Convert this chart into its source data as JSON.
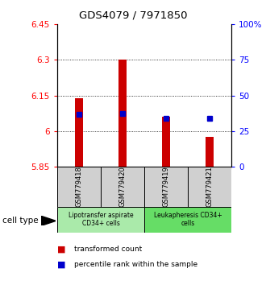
{
  "title": "GDS4079 / 7971850",
  "samples": [
    "GSM779418",
    "GSM779420",
    "GSM779419",
    "GSM779421"
  ],
  "red_bar_bottom": 5.85,
  "red_bar_tops": [
    6.14,
    6.3,
    6.06,
    5.975
  ],
  "blue_square_values": [
    6.07,
    6.075,
    6.055,
    6.055
  ],
  "ylim_left": [
    5.85,
    6.45
  ],
  "ylim_right": [
    0,
    100
  ],
  "yticks_left": [
    5.85,
    6.0,
    6.15,
    6.3,
    6.45
  ],
  "yticks_right": [
    0,
    25,
    50,
    75,
    100
  ],
  "ytick_labels_left": [
    "5.85",
    "6",
    "6.15",
    "6.3",
    "6.45"
  ],
  "ytick_labels_right": [
    "0",
    "25",
    "50",
    "75",
    "100%"
  ],
  "grid_lines": [
    6.0,
    6.15,
    6.3
  ],
  "groups": [
    {
      "label": "Lipotransfer aspirate\nCD34+ cells",
      "samples": [
        0,
        1
      ],
      "color": "#aaeaaa"
    },
    {
      "label": "Leukapheresis CD34+\ncells",
      "samples": [
        2,
        3
      ],
      "color": "#66dd66"
    }
  ],
  "bar_color": "#cc0000",
  "square_color": "#0000cc",
  "bar_width": 0.18,
  "sample_box_color": "#d0d0d0",
  "legend_red_label": "transformed count",
  "legend_blue_label": "percentile rank within the sample",
  "cell_type_label": "cell type"
}
